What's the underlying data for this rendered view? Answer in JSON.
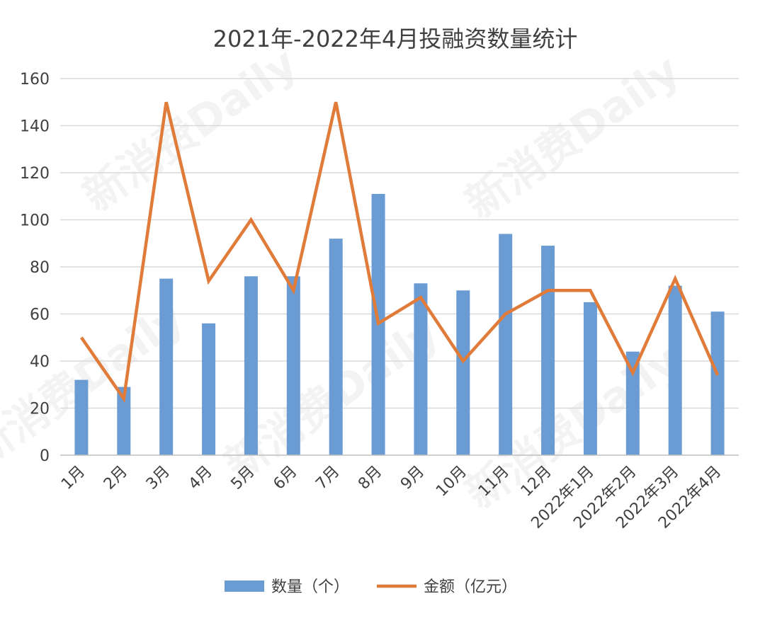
{
  "watermark": {
    "text": "新消费Daily"
  },
  "chart_data": {
    "type": "bar",
    "title": "2021年-2022年4月投融资数量统计",
    "categories": [
      "1月",
      "2月",
      "3月",
      "4月",
      "5月",
      "6月",
      "7月",
      "8月",
      "9月",
      "10月",
      "11月",
      "12月",
      "2022年1月",
      "2022年2月",
      "2022年3月",
      "2022年4月"
    ],
    "ylim": [
      0,
      160
    ],
    "yticks": [
      0,
      20,
      40,
      60,
      80,
      100,
      120,
      140,
      160
    ],
    "grid": true,
    "legend_position": "bottom",
    "series": [
      {
        "name": "数量（个）",
        "type": "bar",
        "color": "#6a9bd3",
        "values": [
          32,
          29,
          75,
          56,
          76,
          76,
          92,
          111,
          73,
          70,
          94,
          89,
          65,
          44,
          72,
          61
        ]
      },
      {
        "name": "金额（亿元）",
        "type": "line",
        "color": "#e07b39",
        "values": [
          50,
          24,
          150,
          74,
          100,
          70,
          150,
          56,
          67,
          40,
          60,
          70,
          70,
          35,
          75,
          34
        ]
      }
    ]
  }
}
